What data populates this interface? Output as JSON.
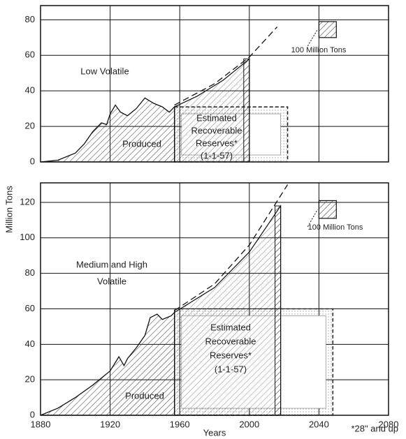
{
  "ylabel": "Million Tons",
  "xlabel": "Years",
  "footnote": "*28\" and up",
  "chart_data": [
    {
      "type": "area",
      "panel_label": [
        "Low Volatile"
      ],
      "xlim": [
        1880,
        2080
      ],
      "xticks": [
        1880,
        1920,
        1960,
        2000,
        2040,
        2080
      ],
      "ylim": [
        0,
        88
      ],
      "yticks": [
        0,
        20,
        40,
        60,
        80
      ],
      "grid": true,
      "produced": {
        "label": "Produced",
        "x": [
          1880,
          1890,
          1900,
          1905,
          1910,
          1915,
          1918,
          1920,
          1923,
          1926,
          1930,
          1935,
          1940,
          1945,
          1950,
          1954,
          1957
        ],
        "values": [
          0,
          1,
          5,
          10,
          17,
          22,
          21,
          27,
          32,
          28,
          26,
          30,
          36,
          33,
          31,
          28,
          31
        ]
      },
      "future": {
        "x": [
          1957,
          1970,
          1985,
          2000
        ],
        "values": [
          31,
          37,
          46,
          58
        ]
      },
      "projection": {
        "x": [
          1957,
          1980,
          2000,
          2016
        ],
        "values": [
          32,
          44,
          59,
          76
        ]
      },
      "reserves": {
        "lines": [
          "Estimated",
          "Recoverable",
          "Reserves*",
          "(1-1-57)"
        ],
        "x": [
          1957,
          2022
        ],
        "height": 31
      },
      "scale_box": {
        "label": "100 Million Tons",
        "x": [
          2040,
          2050
        ],
        "y": [
          70,
          79
        ]
      }
    },
    {
      "type": "area",
      "panel_label": [
        "Medium and High",
        "Volatile"
      ],
      "xlim": [
        1880,
        2080
      ],
      "xticks": [
        1880,
        1920,
        1960,
        2000,
        2040,
        2080
      ],
      "ylim": [
        0,
        131
      ],
      "yticks": [
        0,
        20,
        40,
        60,
        80,
        100,
        120
      ],
      "grid": true,
      "produced": {
        "label": "Produced",
        "x": [
          1880,
          1890,
          1900,
          1910,
          1920,
          1925,
          1928,
          1930,
          1935,
          1940,
          1943,
          1947,
          1950,
          1955,
          1957
        ],
        "values": [
          0,
          4,
          10,
          17,
          25,
          33,
          28,
          32,
          38,
          45,
          55,
          57,
          54,
          56,
          58
        ]
      },
      "future": {
        "x": [
          1957,
          1980,
          2000,
          2018
        ],
        "values": [
          58,
          72,
          92,
          118
        ]
      },
      "projection": {
        "x": [
          1957,
          1980,
          2000,
          2022
        ],
        "values": [
          59,
          74,
          96,
          130
        ]
      },
      "reserves": {
        "lines": [
          "Estimated",
          "Recoverable",
          "Reserves*",
          "(1-1-57)"
        ],
        "x": [
          1957,
          2048
        ],
        "height": 60
      },
      "scale_box": {
        "label": "100 Million Tons",
        "x": [
          2040,
          2050
        ],
        "y": [
          111,
          121
        ]
      }
    }
  ]
}
